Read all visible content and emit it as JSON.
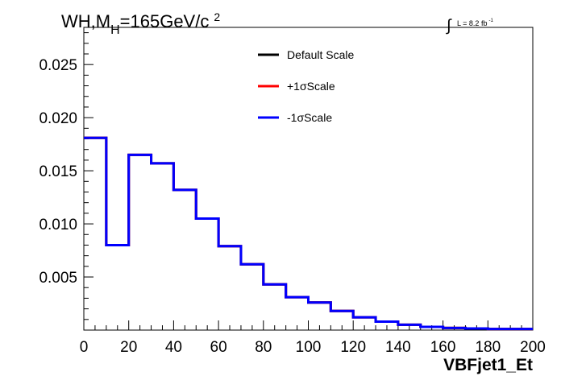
{
  "chart_data": {
    "type": "step",
    "title": "",
    "header_label": {
      "process": "WH,M",
      "subscript": "H",
      "mass": "=165GeV/c",
      "superscript": "2"
    },
    "lumi_label": {
      "integral": "∫",
      "text": "L = 8.2 fb",
      "superscript": "-1"
    },
    "xlabel": "VBFjet1_Et",
    "ylabel": "",
    "xlim": [
      0,
      200
    ],
    "ylim": [
      0,
      0.0285
    ],
    "x_ticks": [
      "0",
      "20",
      "40",
      "60",
      "80",
      "100",
      "120",
      "140",
      "160",
      "180",
      "200"
    ],
    "y_ticks": [
      "0.005",
      "0.010",
      "0.015",
      "0.020",
      "0.025"
    ],
    "bin_edges": [
      0,
      10,
      20,
      30,
      40,
      50,
      60,
      70,
      80,
      90,
      100,
      110,
      120,
      130,
      140,
      150,
      160,
      170,
      180,
      190,
      200
    ],
    "series": [
      {
        "name": "Default Scale",
        "color": "#000000",
        "values": [
          0.0181,
          0.008,
          0.0165,
          0.0157,
          0.0132,
          0.0105,
          0.0079,
          0.0062,
          0.0043,
          0.0031,
          0.0026,
          0.0018,
          0.0012,
          0.0008,
          0.0005,
          0.0003,
          0.0002,
          0.00015,
          0.0001,
          0.0001
        ]
      },
      {
        "name": "+1σScale",
        "color": "#ff0000",
        "values": [
          0.0181,
          0.008,
          0.0165,
          0.0157,
          0.0132,
          0.0105,
          0.0079,
          0.0062,
          0.0043,
          0.0031,
          0.0026,
          0.0018,
          0.0012,
          0.0008,
          0.0005,
          0.0003,
          0.0002,
          0.00015,
          0.0001,
          0.0001
        ]
      },
      {
        "name": "-1σScale",
        "color": "#0000ff",
        "values": [
          0.0181,
          0.008,
          0.0165,
          0.0157,
          0.0132,
          0.0105,
          0.0079,
          0.0062,
          0.0043,
          0.0031,
          0.0026,
          0.0018,
          0.0012,
          0.0008,
          0.0005,
          0.0003,
          0.0002,
          0.00015,
          0.0001,
          0.0001
        ]
      }
    ],
    "legend_position": "top-center",
    "grid": false
  }
}
